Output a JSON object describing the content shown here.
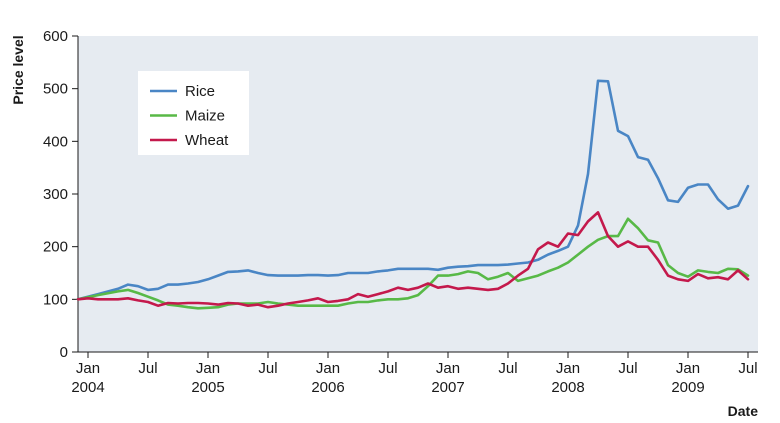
{
  "chart_data": {
    "type": "line",
    "ylabel": "Price level",
    "xlabel": "Date",
    "ylim": [
      0,
      600
    ],
    "yticks": [
      0,
      100,
      200,
      300,
      400,
      500,
      600
    ],
    "xlim": [
      "2003-12",
      "2009-08"
    ],
    "xticks": [
      {
        "date": "2004-01",
        "label": "Jan",
        "year": "2004"
      },
      {
        "date": "2004-07",
        "label": "Jul",
        "year": ""
      },
      {
        "date": "2005-01",
        "label": "Jan",
        "year": "2005"
      },
      {
        "date": "2005-07",
        "label": "Jul",
        "year": ""
      },
      {
        "date": "2006-01",
        "label": "Jan",
        "year": "2006"
      },
      {
        "date": "2006-07",
        "label": "Jul",
        "year": ""
      },
      {
        "date": "2007-01",
        "label": "Jan",
        "year": "2007"
      },
      {
        "date": "2007-07",
        "label": "Jul",
        "year": ""
      },
      {
        "date": "2008-01",
        "label": "Jan",
        "year": "2008"
      },
      {
        "date": "2008-07",
        "label": "Jul",
        "year": ""
      },
      {
        "date": "2009-01",
        "label": "Jan",
        "year": "2009"
      },
      {
        "date": "2009-07",
        "label": "Jul",
        "year": ""
      }
    ],
    "grid": false,
    "legend_position": "top-left",
    "series": [
      {
        "name": "Rice",
        "color": "#4a86c5",
        "points": [
          [
            "2003-12",
            100
          ],
          [
            "2004-02",
            110
          ],
          [
            "2004-04",
            120
          ],
          [
            "2004-05",
            128
          ],
          [
            "2004-06",
            125
          ],
          [
            "2004-07",
            118
          ],
          [
            "2004-08",
            120
          ],
          [
            "2004-09",
            128
          ],
          [
            "2004-10",
            128
          ],
          [
            "2004-11",
            130
          ],
          [
            "2004-12",
            133
          ],
          [
            "2005-01",
            138
          ],
          [
            "2005-02",
            145
          ],
          [
            "2005-03",
            152
          ],
          [
            "2005-04",
            153
          ],
          [
            "2005-05",
            155
          ],
          [
            "2005-06",
            150
          ],
          [
            "2005-07",
            146
          ],
          [
            "2005-08",
            145
          ],
          [
            "2005-09",
            145
          ],
          [
            "2005-10",
            145
          ],
          [
            "2005-11",
            146
          ],
          [
            "2005-12",
            146
          ],
          [
            "2006-01",
            145
          ],
          [
            "2006-02",
            146
          ],
          [
            "2006-03",
            150
          ],
          [
            "2006-04",
            150
          ],
          [
            "2006-05",
            150
          ],
          [
            "2006-06",
            153
          ],
          [
            "2006-07",
            155
          ],
          [
            "2006-08",
            158
          ],
          [
            "2006-09",
            158
          ],
          [
            "2006-10",
            158
          ],
          [
            "2006-11",
            158
          ],
          [
            "2006-12",
            156
          ],
          [
            "2007-01",
            160
          ],
          [
            "2007-02",
            162
          ],
          [
            "2007-03",
            163
          ],
          [
            "2007-04",
            165
          ],
          [
            "2007-05",
            165
          ],
          [
            "2007-06",
            165
          ],
          [
            "2007-07",
            166
          ],
          [
            "2007-08",
            168
          ],
          [
            "2007-09",
            170
          ],
          [
            "2007-10",
            175
          ],
          [
            "2007-11",
            185
          ],
          [
            "2007-12",
            192
          ],
          [
            "2008-01",
            200
          ],
          [
            "2008-02",
            240
          ],
          [
            "2008-03",
            338
          ],
          [
            "2008-04",
            515
          ],
          [
            "2008-05",
            514
          ],
          [
            "2008-06",
            420
          ],
          [
            "2008-07",
            410
          ],
          [
            "2008-08",
            370
          ],
          [
            "2008-09",
            365
          ],
          [
            "2008-10",
            330
          ],
          [
            "2008-11",
            288
          ],
          [
            "2008-12",
            285
          ],
          [
            "2009-01",
            312
          ],
          [
            "2009-02",
            318
          ],
          [
            "2009-03",
            318
          ],
          [
            "2009-04",
            290
          ],
          [
            "2009-05",
            272
          ],
          [
            "2009-06",
            278
          ],
          [
            "2009-07",
            315
          ]
        ]
      },
      {
        "name": "Maize",
        "color": "#58b947",
        "points": [
          [
            "2003-12",
            100
          ],
          [
            "2004-02",
            108
          ],
          [
            "2004-04",
            115
          ],
          [
            "2004-05",
            118
          ],
          [
            "2004-06",
            112
          ],
          [
            "2004-07",
            105
          ],
          [
            "2004-08",
            98
          ],
          [
            "2004-09",
            90
          ],
          [
            "2004-10",
            88
          ],
          [
            "2004-11",
            85
          ],
          [
            "2004-12",
            83
          ],
          [
            "2005-01",
            84
          ],
          [
            "2005-02",
            85
          ],
          [
            "2005-03",
            90
          ],
          [
            "2005-04",
            92
          ],
          [
            "2005-05",
            92
          ],
          [
            "2005-06",
            92
          ],
          [
            "2005-07",
            95
          ],
          [
            "2005-08",
            92
          ],
          [
            "2005-09",
            90
          ],
          [
            "2005-10",
            88
          ],
          [
            "2005-11",
            88
          ],
          [
            "2005-12",
            88
          ],
          [
            "2006-01",
            88
          ],
          [
            "2006-02",
            88
          ],
          [
            "2006-03",
            92
          ],
          [
            "2006-04",
            95
          ],
          [
            "2006-05",
            95
          ],
          [
            "2006-06",
            98
          ],
          [
            "2006-07",
            100
          ],
          [
            "2006-08",
            100
          ],
          [
            "2006-09",
            102
          ],
          [
            "2006-10",
            108
          ],
          [
            "2006-11",
            125
          ],
          [
            "2006-12",
            145
          ],
          [
            "2007-01",
            145
          ],
          [
            "2007-02",
            148
          ],
          [
            "2007-03",
            153
          ],
          [
            "2007-04",
            150
          ],
          [
            "2007-05",
            138
          ],
          [
            "2007-06",
            143
          ],
          [
            "2007-07",
            150
          ],
          [
            "2007-08",
            135
          ],
          [
            "2007-09",
            140
          ],
          [
            "2007-10",
            145
          ],
          [
            "2007-11",
            153
          ],
          [
            "2007-12",
            160
          ],
          [
            "2008-01",
            170
          ],
          [
            "2008-02",
            185
          ],
          [
            "2008-03",
            200
          ],
          [
            "2008-04",
            213
          ],
          [
            "2008-05",
            220
          ],
          [
            "2008-06",
            220
          ],
          [
            "2008-07",
            253
          ],
          [
            "2008-08",
            235
          ],
          [
            "2008-09",
            212
          ],
          [
            "2008-10",
            208
          ],
          [
            "2008-11",
            165
          ],
          [
            "2008-12",
            150
          ],
          [
            "2009-01",
            143
          ],
          [
            "2009-02",
            155
          ],
          [
            "2009-03",
            152
          ],
          [
            "2009-04",
            150
          ],
          [
            "2009-05",
            158
          ],
          [
            "2009-06",
            157
          ],
          [
            "2009-07",
            145
          ]
        ]
      },
      {
        "name": "Wheat",
        "color": "#c4194c",
        "points": [
          [
            "2003-12",
            100
          ],
          [
            "2004-01",
            102
          ],
          [
            "2004-02",
            100
          ],
          [
            "2004-04",
            100
          ],
          [
            "2004-05",
            102
          ],
          [
            "2004-06",
            98
          ],
          [
            "2004-07",
            95
          ],
          [
            "2004-08",
            88
          ],
          [
            "2004-09",
            93
          ],
          [
            "2004-10",
            92
          ],
          [
            "2004-11",
            93
          ],
          [
            "2004-12",
            93
          ],
          [
            "2005-01",
            92
          ],
          [
            "2005-02",
            90
          ],
          [
            "2005-03",
            93
          ],
          [
            "2005-04",
            92
          ],
          [
            "2005-05",
            88
          ],
          [
            "2005-06",
            90
          ],
          [
            "2005-07",
            85
          ],
          [
            "2005-08",
            88
          ],
          [
            "2005-09",
            92
          ],
          [
            "2005-10",
            95
          ],
          [
            "2005-11",
            98
          ],
          [
            "2005-12",
            102
          ],
          [
            "2006-01",
            95
          ],
          [
            "2006-02",
            97
          ],
          [
            "2006-03",
            100
          ],
          [
            "2006-04",
            110
          ],
          [
            "2006-05",
            105
          ],
          [
            "2006-06",
            110
          ],
          [
            "2006-07",
            115
          ],
          [
            "2006-08",
            122
          ],
          [
            "2006-09",
            118
          ],
          [
            "2006-10",
            122
          ],
          [
            "2006-11",
            130
          ],
          [
            "2006-12",
            122
          ],
          [
            "2007-01",
            125
          ],
          [
            "2007-02",
            120
          ],
          [
            "2007-03",
            122
          ],
          [
            "2007-04",
            120
          ],
          [
            "2007-05",
            118
          ],
          [
            "2007-06",
            120
          ],
          [
            "2007-07",
            130
          ],
          [
            "2007-08",
            145
          ],
          [
            "2007-09",
            158
          ],
          [
            "2007-10",
            195
          ],
          [
            "2007-11",
            208
          ],
          [
            "2007-12",
            200
          ],
          [
            "2008-01",
            225
          ],
          [
            "2008-02",
            222
          ],
          [
            "2008-03",
            248
          ],
          [
            "2008-04",
            265
          ],
          [
            "2008-05",
            220
          ],
          [
            "2008-06",
            200
          ],
          [
            "2008-07",
            210
          ],
          [
            "2008-08",
            200
          ],
          [
            "2008-09",
            200
          ],
          [
            "2008-10",
            175
          ],
          [
            "2008-11",
            145
          ],
          [
            "2008-12",
            138
          ],
          [
            "2009-01",
            135
          ],
          [
            "2009-02",
            148
          ],
          [
            "2009-03",
            140
          ],
          [
            "2009-04",
            142
          ],
          [
            "2009-05",
            138
          ],
          [
            "2009-06",
            155
          ],
          [
            "2009-07",
            138
          ]
        ]
      }
    ]
  }
}
